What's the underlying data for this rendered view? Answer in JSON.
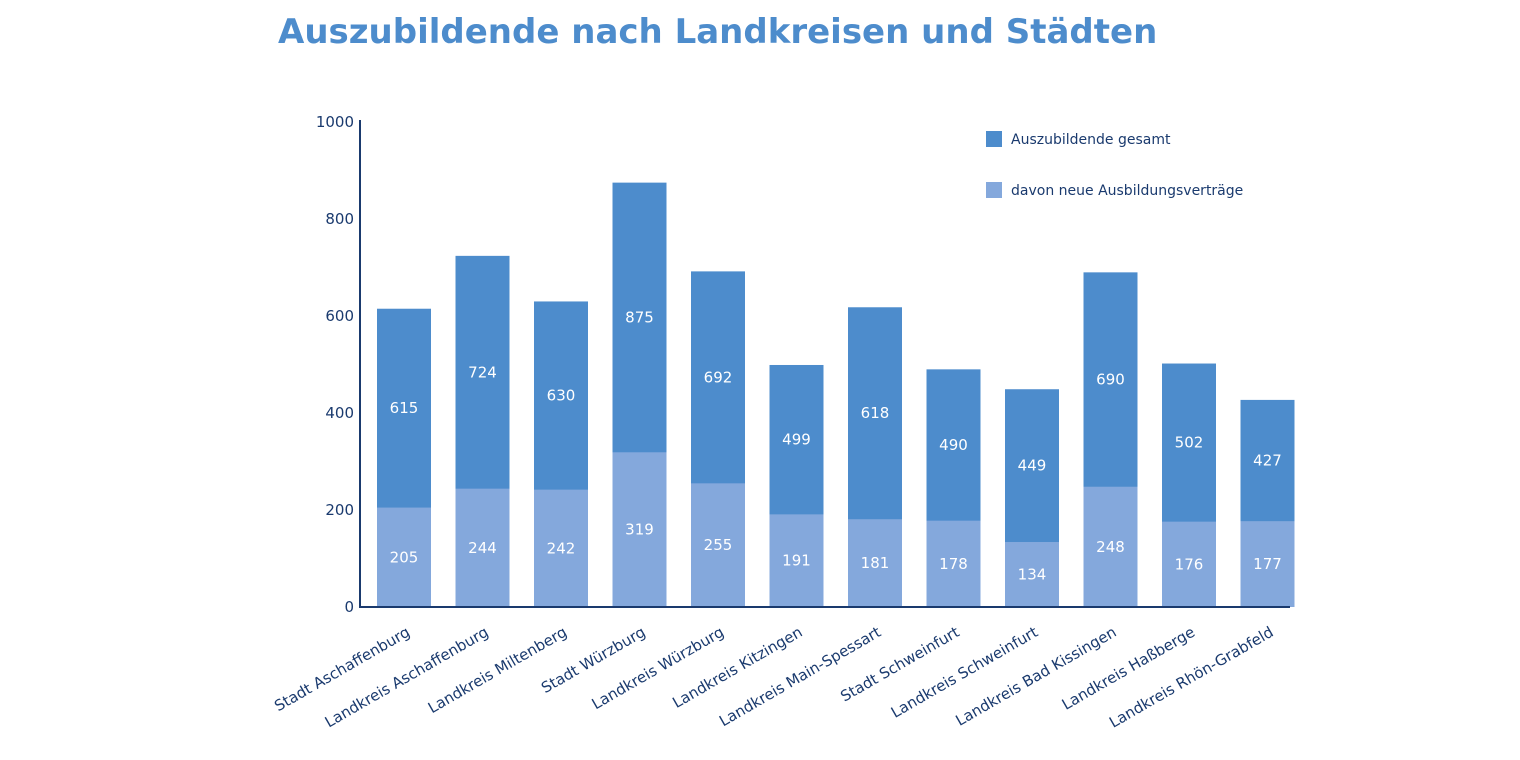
{
  "title": "Auszubildende nach Landkreisen und Städten",
  "colors": {
    "total": "#4d8ccc",
    "new": "#84a8dc",
    "axis": "#1a3a6e",
    "title": "#4d8ccc"
  },
  "chart_data": {
    "type": "bar",
    "title": "Auszubildende nach Landkreisen und Städten",
    "xlabel": "",
    "ylabel": "",
    "ylim": [
      0,
      1000
    ],
    "yticks": [
      0,
      200,
      400,
      600,
      800,
      1000
    ],
    "legend_position": "top-right",
    "categories": [
      "Stadt Aschaffenburg",
      "Landkreis Aschaffenburg",
      "Landkreis Miltenberg",
      "Stadt Würzburg",
      "Landkreis Würzburg",
      "Landkreis Kitzingen",
      "Landkreis Main-Spessart",
      "Stadt Schweinfurt",
      "Landkreis Schweinfurt",
      "Landkreis Bad Kissingen",
      "Landkreis Haßberge",
      "Landkreis Rhön-Grabfeld"
    ],
    "series": [
      {
        "name": "Auszubildende gesamt",
        "values": [
          615,
          724,
          630,
          875,
          692,
          499,
          618,
          490,
          449,
          690,
          502,
          427
        ]
      },
      {
        "name": "davon neue Ausbildungsverträge",
        "values": [
          205,
          244,
          242,
          319,
          255,
          191,
          181,
          178,
          134,
          248,
          176,
          177
        ]
      }
    ]
  }
}
